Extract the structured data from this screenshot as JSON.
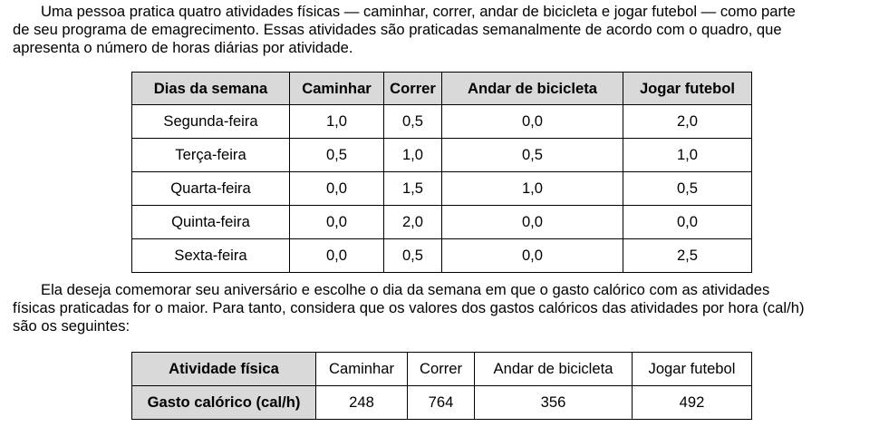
{
  "intro": {
    "lines": [
      "Uma pessoa pratica quatro atividades físicas — caminhar, correr, andar de bicicleta e jogar futebol — como parte",
      "de seu programa de emagrecimento. Essas atividades são praticadas semanalmente de acordo com o quadro, que",
      "apresenta o número de horas diárias por atividade."
    ]
  },
  "hours_table": {
    "headers": [
      "Dias da semana",
      "Caminhar",
      "Correr",
      "Andar de bicicleta",
      "Jogar futebol"
    ],
    "rows": [
      [
        "Segunda-feira",
        "1,0",
        "0,5",
        "0,0",
        "2,0"
      ],
      [
        "Terça-feira",
        "0,5",
        "1,0",
        "0,5",
        "1,0"
      ],
      [
        "Quarta-feira",
        "0,0",
        "1,5",
        "1,0",
        "0,5"
      ],
      [
        "Quinta-feira",
        "0,0",
        "2,0",
        "0,0",
        "0,0"
      ],
      [
        "Sexta-feira",
        "0,0",
        "0,5",
        "0,0",
        "2,5"
      ]
    ]
  },
  "question": {
    "lines": [
      "Ela deseja comemorar seu aniversário e escolhe o dia da semana em que o gasto calórico com as atividades",
      "físicas praticadas for o maior. Para tanto, considera que os valores dos gastos calóricos das atividades por hora (cal/h)",
      "são os seguintes:"
    ]
  },
  "calorie_table": {
    "row1_header": "Atividade física",
    "activities": [
      "Caminhar",
      "Correr",
      "Andar de bicicleta",
      "Jogar futebol"
    ],
    "row2_header": "Gasto calórico (cal/h)",
    "values": [
      "248",
      "764",
      "356",
      "492"
    ]
  }
}
